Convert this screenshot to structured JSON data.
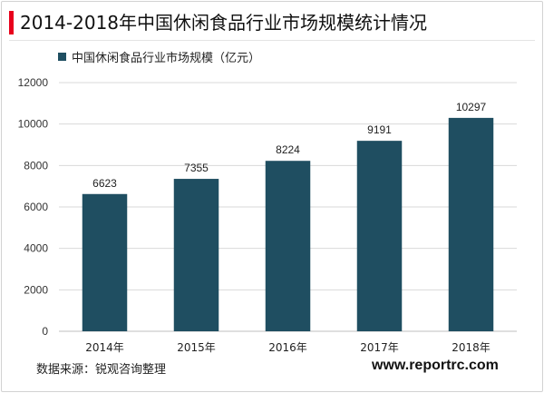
{
  "page": {
    "title": "2014-2018年中国休闲食品行业市场规模统计情况",
    "accent_color": "#e8001c",
    "source": "数据来源：锐观咨询整理",
    "website": "www.reportrc.com"
  },
  "chart_data": {
    "type": "bar",
    "title": "2014-2018年中国休闲食品行业市场规模统计情况",
    "categories": [
      "2014年",
      "2015年",
      "2016年",
      "2017年",
      "2018年"
    ],
    "series": [
      {
        "name": "中国休闲食品行业市场规模（亿元）",
        "values": [
          6623,
          7355,
          8224,
          9191,
          10297
        ],
        "color": "#1f4e61"
      }
    ],
    "ylim": [
      0,
      12000
    ],
    "yticks": [
      0,
      2000,
      4000,
      6000,
      8000,
      10000,
      12000
    ],
    "grid": true,
    "legend": "top-left",
    "data_labels": true
  }
}
